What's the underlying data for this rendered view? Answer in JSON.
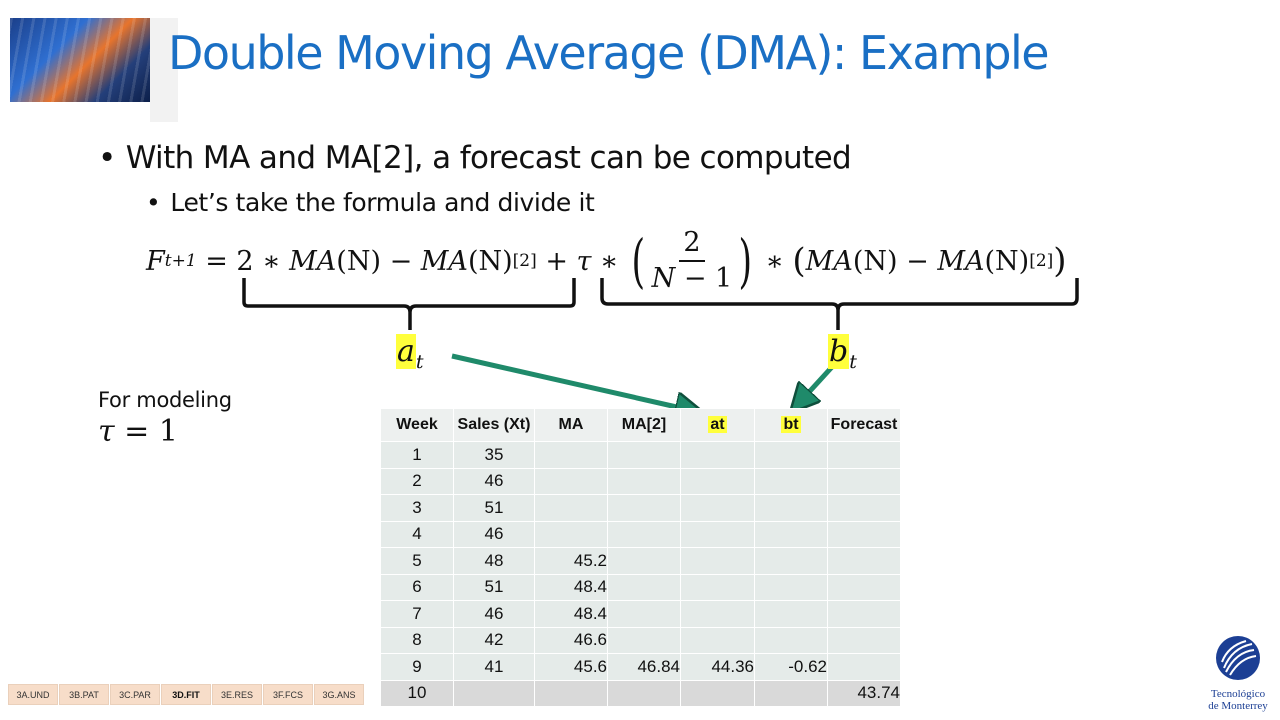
{
  "slide": {
    "title": "Double Moving Average (DMA): Example",
    "bullet_1": "With MA and MA[2], a forecast can be computed",
    "bullet_2": "Let’s take the formula and divide it",
    "formula": {
      "F": "F",
      "t1": "t+1",
      "eq": " = 2 ∗ ",
      "MA": "MA",
      "N": "(N)",
      "minus": " − ",
      "sub2": "[2]",
      "plus_tau": " + ",
      "tau": "τ",
      "times": " ∗ ",
      "num": "2",
      "den_N": "N",
      "den_rest": " − 1",
      "times2": " ∗ "
    },
    "label_a": {
      "letter": "a",
      "sub": "t"
    },
    "label_b": {
      "letter": "b",
      "sub": "t"
    },
    "modeling_text": "For modeling",
    "tau_eq": {
      "tau": "τ",
      "rest": " = 1"
    }
  },
  "table": {
    "headers": [
      "Week",
      "Sales (Xt)",
      "MA",
      "MA[2]",
      "at",
      "bt",
      "Forecast"
    ],
    "rows": [
      [
        "1",
        "35",
        "",
        "",
        "",
        "",
        ""
      ],
      [
        "2",
        "46",
        "",
        "",
        "",
        "",
        ""
      ],
      [
        "3",
        "51",
        "",
        "",
        "",
        "",
        ""
      ],
      [
        "4",
        "46",
        "",
        "",
        "",
        "",
        ""
      ],
      [
        "5",
        "48",
        "45.2",
        "",
        "",
        "",
        ""
      ],
      [
        "6",
        "51",
        "48.4",
        "",
        "",
        "",
        ""
      ],
      [
        "7",
        "46",
        "48.4",
        "",
        "",
        "",
        ""
      ],
      [
        "8",
        "42",
        "46.6",
        "",
        "",
        "",
        ""
      ],
      [
        "9",
        "41",
        "45.6",
        "46.84",
        "44.36",
        "-0.62",
        ""
      ],
      [
        "10",
        "",
        "",
        "",
        "",
        "",
        "43.74"
      ]
    ]
  },
  "nav_tabs": [
    {
      "label": "3A.UND",
      "active": false
    },
    {
      "label": "3B.PAT",
      "active": false
    },
    {
      "label": "3C.PAR",
      "active": false
    },
    {
      "label": "3D.FIT",
      "active": true
    },
    {
      "label": "3E.RES",
      "active": false
    },
    {
      "label": "3F.FCS",
      "active": false
    },
    {
      "label": "3G.ANS",
      "active": false
    }
  ],
  "brand": {
    "line1": "Tecnológico",
    "line2": "de Monterrey"
  },
  "colors": {
    "title": "#1a6fc4",
    "arrow": "#1f8a6a",
    "highlight": "#ffff3c",
    "table_bg": "#e5ebe9",
    "nav_tab": "#f7ddc9",
    "brand_blue": "#1c3f94"
  }
}
